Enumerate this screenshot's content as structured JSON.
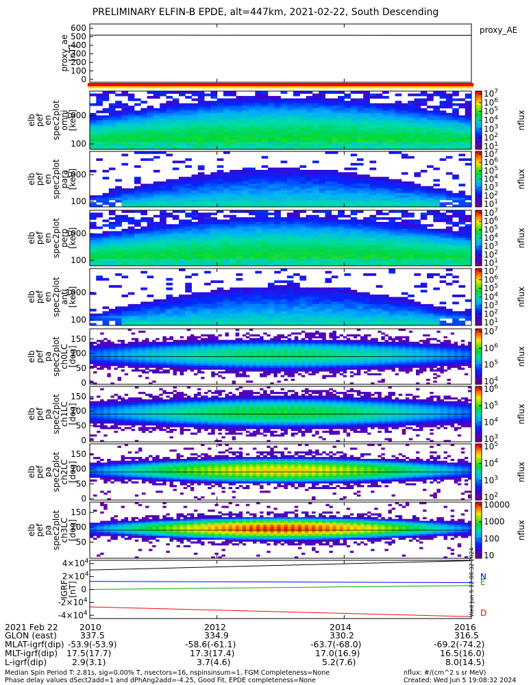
{
  "title": "PRELIMINARY ELFIN-B EPDE, alt=447km, 2021-02-22, South Descending",
  "chart_data": [
    {
      "type": "line",
      "name": "proxy_ae",
      "ylabel": "proxy_ae [nT]",
      "legend": "proxy_AE",
      "yticks": [
        "0",
        "100",
        "200",
        "300",
        "400",
        "500",
        "600"
      ],
      "ylim": [
        0,
        650
      ],
      "series": [
        {
          "values": [
            520,
            520,
            519,
            519,
            518,
            518
          ]
        }
      ],
      "status_bar_colors": [
        "#ff0000",
        "#ffd700"
      ]
    },
    {
      "type": "heatmap",
      "ylabel": "elb pef en spec2plot omni [keV]",
      "yticks": [
        "100",
        "1000"
      ],
      "ylog": true,
      "cbar_label": "nflux",
      "cbar_ticks": [
        "10^1",
        "10^2",
        "10^3",
        "10^4",
        "10^5",
        "10^6",
        "10^7"
      ]
    },
    {
      "type": "heatmap",
      "ylabel": "elb pef en spec2plot para [keV]",
      "yticks": [
        "100",
        "1000"
      ],
      "ylog": true,
      "cbar_label": "nflux",
      "cbar_ticks": [
        "10^1",
        "10^2",
        "10^3",
        "10^4",
        "10^5",
        "10^6",
        "10^7"
      ]
    },
    {
      "type": "heatmap",
      "ylabel": "elb pef en spec2plot perp [keV]",
      "yticks": [
        "100",
        "1000"
      ],
      "ylog": true,
      "cbar_label": "nflux",
      "cbar_ticks": [
        "10^1",
        "10^2",
        "10^3",
        "10^4",
        "10^5",
        "10^6",
        "10^7"
      ]
    },
    {
      "type": "heatmap",
      "ylabel": "elb pef en spec2plot anti [keV]",
      "yticks": [
        "100",
        "1000"
      ],
      "ylog": true,
      "cbar_label": "nflux",
      "cbar_ticks": [
        "10^1",
        "10^2",
        "10^3",
        "10^4",
        "10^5",
        "10^6",
        "10^7"
      ]
    },
    {
      "type": "heatmap",
      "ylabel": "elb pef pa spec2plot ch0LC [deg]",
      "yticks": [
        "0",
        "50",
        "100",
        "150"
      ],
      "cbar_label": "nflux",
      "cbar_ticks": [
        "10^4",
        "10^5",
        "10^6",
        "10^7"
      ]
    },
    {
      "type": "heatmap",
      "ylabel": "elb pef pa spec2plot ch1LC [deg]",
      "yticks": [
        "0",
        "50",
        "100",
        "150"
      ],
      "cbar_label": "nflux",
      "cbar_ticks": [
        "10^3",
        "10^4",
        "10^5",
        "10^6"
      ]
    },
    {
      "type": "heatmap",
      "ylabel": "elb pef pa spec2plot ch2LC [deg]",
      "yticks": [
        "0",
        "50",
        "100",
        "150"
      ],
      "cbar_label": "nflux",
      "cbar_ticks": [
        "10^2",
        "10^3",
        "10^4",
        "10^5"
      ]
    },
    {
      "type": "heatmap",
      "ylabel": "elb pef pa spec2plot ch3LC [deg]",
      "yticks": [
        "50",
        "100",
        "150"
      ],
      "cbar_label": "nflux",
      "cbar_ticks": [
        "10",
        "100",
        "1000",
        "10000"
      ]
    },
    {
      "type": "line",
      "name": "IGRF",
      "ylabel": "IGRF [nT]",
      "yticks": [
        "-4×10^4",
        "-2×10^4",
        "0",
        "2×10^4",
        "4×10^4"
      ],
      "ylim": [
        -45000,
        45000
      ],
      "legend": [
        "N",
        "E",
        "D"
      ],
      "series": [
        {
          "name": "N",
          "color": "#0000ff",
          "x": [
            2010,
            2016
          ],
          "values": [
            12500,
            10500
          ]
        },
        {
          "name": "E",
          "color": "#00aa00",
          "x": [
            2010,
            2016
          ],
          "values": [
            0,
            6000
          ]
        },
        {
          "name": "D",
          "color": "#ff0000",
          "x": [
            2010,
            2016
          ],
          "values": [
            -27000,
            -42000
          ]
        },
        {
          "name": "",
          "color": "#000000",
          "x": [
            2010,
            2016
          ],
          "values": [
            30000,
            44500
          ]
        }
      ]
    }
  ],
  "xaxis": {
    "row_labels": [
      "2021 Feb 22",
      "GLON (east)",
      "MLAT-igrf(dip)",
      "MLT-igrf(dip)",
      "L-igrf(dip)"
    ],
    "columns": [
      {
        "time": "2010",
        "glon": "337.5",
        "mlat": "-53.9(-53.9)",
        "mlt": "17.5(17.7)",
        "l": "2.9(3.1)"
      },
      {
        "time": "2012",
        "glon": "334.9",
        "mlat": "-58.6(-61.1)",
        "mlt": "17.3(17.4)",
        "l": "3.7(4.6)"
      },
      {
        "time": "2014",
        "glon": "330.2",
        "mlat": "-63.7(-68.0)",
        "mlt": "17.0(16.9)",
        "l": "5.2(7.6)"
      },
      {
        "time": "2016",
        "glon": "316.5",
        "mlat": "-69.2(-74.2)",
        "mlt": "16.5(16.0)",
        "l": "8.0(14.5)"
      }
    ]
  },
  "footer": {
    "line1": "Median Spin Period T: 2.81s, sig=0.00% T, nsectors=16, nspinsinsum=1, FGM Completeness=None",
    "line2": "Phase delay values dSect2add=1 and dPhAng2add=-4.25, Good Fit, EPDE completeness=None",
    "units": "nflux: #/(cm^2 s sr MeV)",
    "created": "Created: Wed Jun  5 19:08:32 2024",
    "side_stamp": "Wed Jun  5 12:08:32 2024"
  }
}
